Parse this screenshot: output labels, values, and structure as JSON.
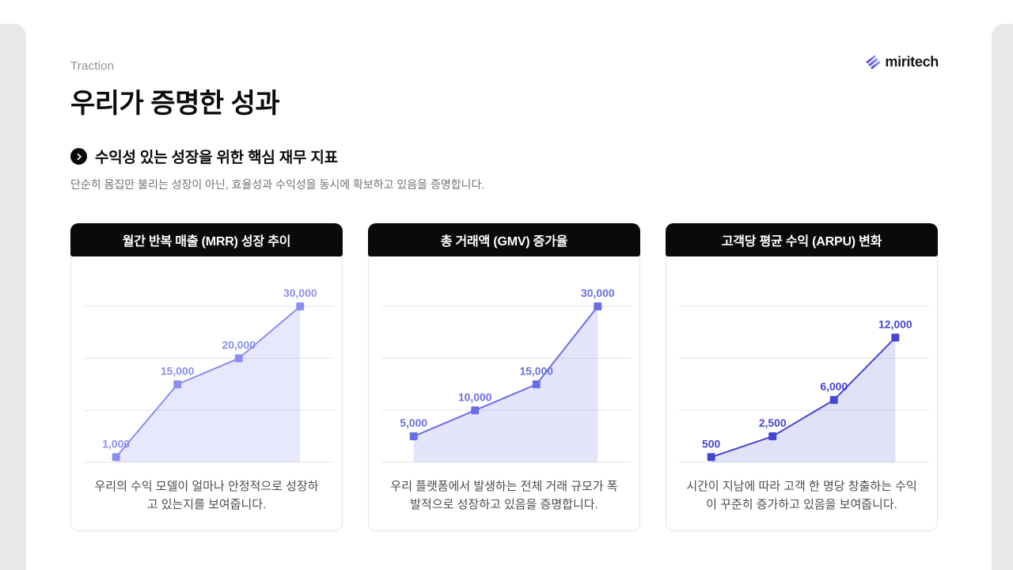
{
  "page": {
    "eyebrow": "Traction",
    "title": "우리가 증명한 성과",
    "subtitle": "수익성 있는 성장을 위한 핵심 재무 지표",
    "description": "단순히 몸집만 불리는 성장이 아닌, 효율성과 수익성을 동시에 확보하고 있음을 증명합니다.",
    "logo_text": "miritech"
  },
  "colors": {
    "header_bar": "#0a0a0a",
    "grid_line": "#e4e4e7",
    "edge_strip": "#e8e8e9",
    "logo_gradient_start": "#3d37d8",
    "logo_gradient_end": "#9aa0f2"
  },
  "chart_data": [
    {
      "type": "area",
      "title": "월간 반복 매출 (MRR) 성장 추이",
      "values": [
        1000,
        15000,
        20000,
        30000
      ],
      "labels": [
        "1,000",
        "15,000",
        "20,000",
        "30,000"
      ],
      "ylim": [
        0,
        30000
      ],
      "grid_step": 10000,
      "grid": true,
      "legend": "none",
      "line_color": "#8a8ef0",
      "fill_color": "rgba(138,142,240,0.20)",
      "caption": "우리의 수익 모델이 얼마나 안정적으로 성장하고 있는지를 보여줍니다."
    },
    {
      "type": "area",
      "title": "총 거래액 (GMV) 증가율",
      "values": [
        5000,
        10000,
        15000,
        30000
      ],
      "labels": [
        "5,000",
        "10,000",
        "15,000",
        "30,000"
      ],
      "ylim": [
        0,
        30000
      ],
      "grid_step": 10000,
      "grid": true,
      "legend": "none",
      "line_color": "#6a6ee6",
      "fill_color": "rgba(106,110,230,0.18)",
      "caption": "우리 플랫폼에서 발생하는 전체 거래 규모가 폭발적으로 성장하고 있음을 증명합니다."
    },
    {
      "type": "area",
      "title": "고객당 평균 수익 (ARPU) 변화",
      "values": [
        500,
        2500,
        6000,
        12000
      ],
      "labels": [
        "500",
        "2,500",
        "6,000",
        "12,000"
      ],
      "ylim": [
        0,
        15000
      ],
      "grid_step": 5000,
      "grid": true,
      "legend": "none",
      "line_color": "#4347d2",
      "fill_color": "rgba(67,71,210,0.16)",
      "caption": "시간이 지남에 따라 고객 한 명당 창출하는 수익이 꾸준히 증가하고 있음을 보여줍니다."
    }
  ]
}
